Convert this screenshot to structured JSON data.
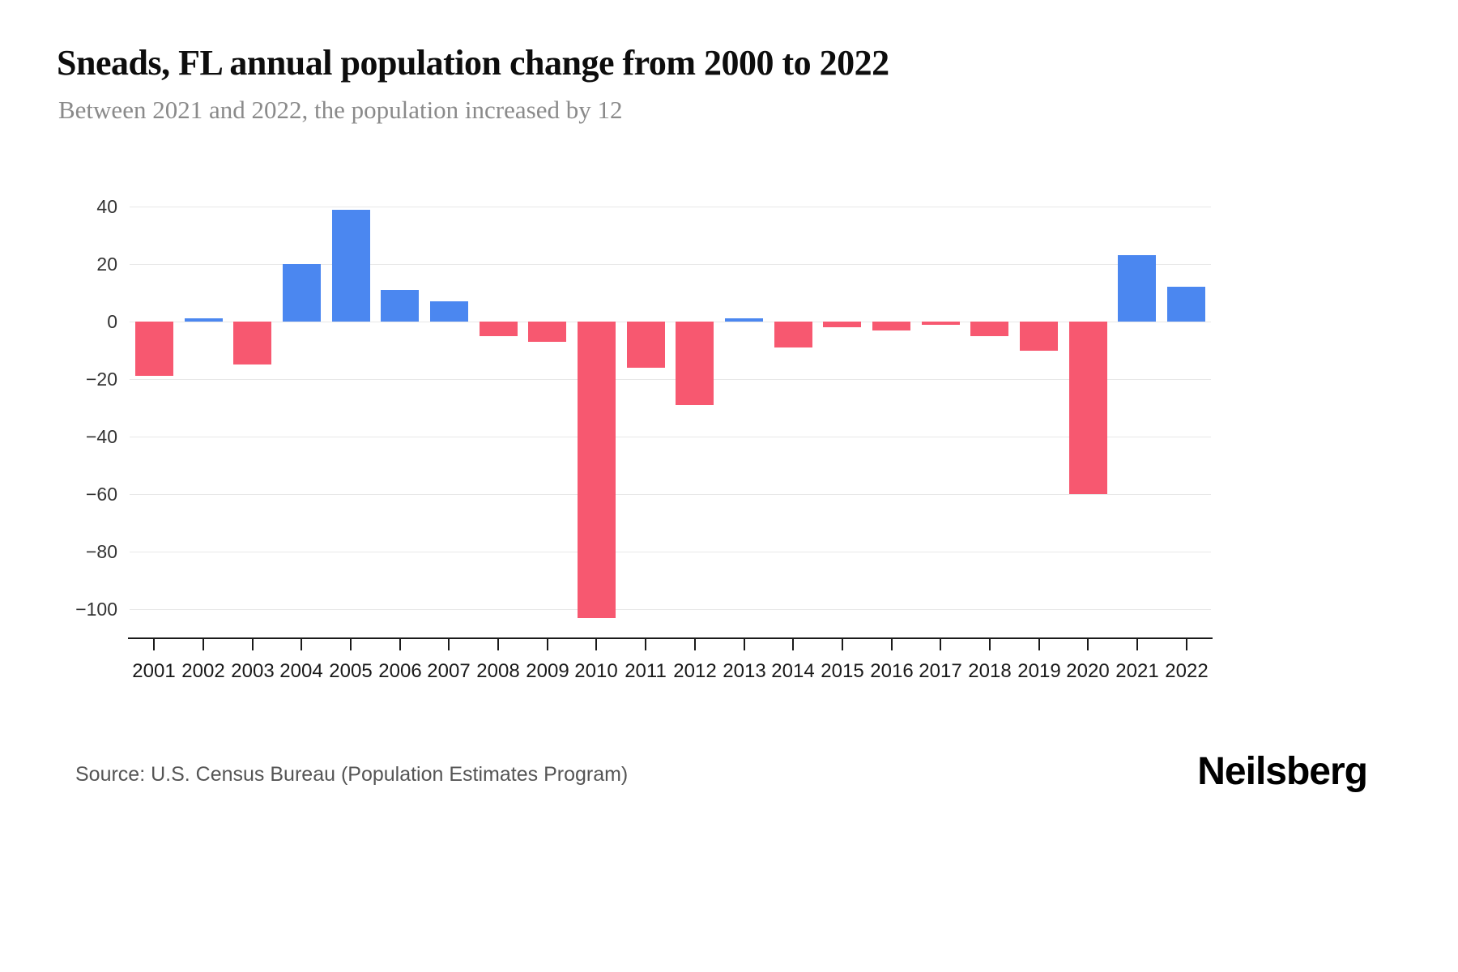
{
  "page": {
    "title": "Sneads, FL annual population change from 2000 to 2022",
    "subtitle": "Between 2021 and 2022, the population increased by 12",
    "source": "Source: U.S. Census Bureau (Population Estimates Program)",
    "brand": "Neilsberg"
  },
  "chart_data": {
    "type": "bar",
    "title": "Sneads, FL annual population change from 2000 to 2022",
    "subtitle": "Between 2021 and 2022, the population increased by 12",
    "categories": [
      "2001",
      "2002",
      "2003",
      "2004",
      "2005",
      "2006",
      "2007",
      "2008",
      "2009",
      "2010",
      "2011",
      "2012",
      "2013",
      "2014",
      "2015",
      "2016",
      "2017",
      "2018",
      "2019",
      "2020",
      "2021",
      "2022"
    ],
    "values": [
      -19,
      1,
      -15,
      20,
      39,
      11,
      7,
      -5,
      -7,
      -103,
      -16,
      -29,
      1,
      -9,
      -2,
      -3,
      -1,
      -5,
      -10,
      -60,
      23,
      12
    ],
    "yticks": [
      40,
      20,
      0,
      -20,
      -40,
      -60,
      -80,
      -100
    ],
    "ylim": [
      -110,
      45
    ],
    "xlabel": "",
    "ylabel": "",
    "grid": true,
    "legend": "none",
    "positive_color": "#4b87f0",
    "negative_color": "#f75870"
  }
}
